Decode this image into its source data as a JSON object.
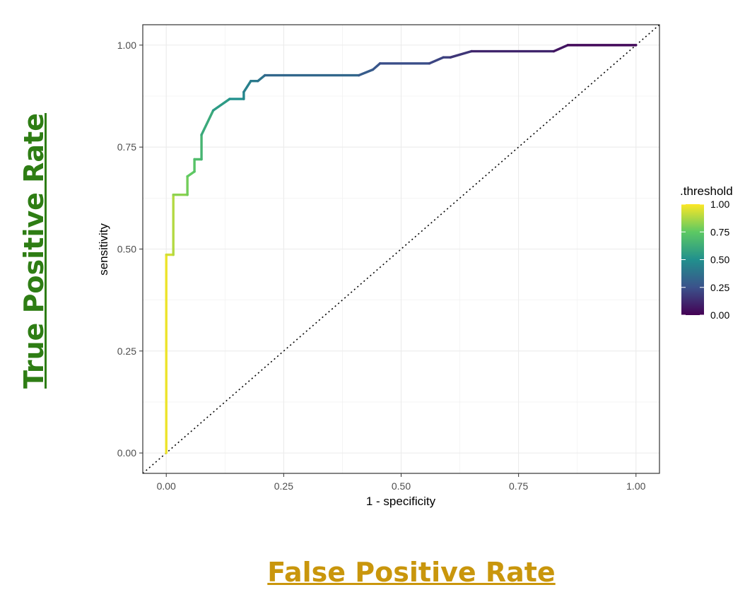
{
  "chart_data": {
    "type": "line",
    "xlabel": "1 - specificity",
    "ylabel": "sensitivity",
    "xlim": [
      -0.05,
      1.05
    ],
    "ylim": [
      -0.05,
      1.05
    ],
    "x_ticks": [
      "0.00",
      "0.25",
      "0.50",
      "0.75",
      "1.00"
    ],
    "y_ticks": [
      "0.00",
      "0.25",
      "0.50",
      "0.75",
      "1.00"
    ],
    "grid": true,
    "reference_line": {
      "style": "dotted",
      "from": [
        0,
        0
      ],
      "to": [
        1,
        1
      ]
    },
    "legend": {
      "title": ".threshold",
      "placement": "right",
      "colormap": "viridis",
      "range": [
        0,
        1
      ],
      "ticks": [
        "1.00",
        "0.75",
        "0.50",
        "0.25",
        "0.00"
      ]
    },
    "series": [
      {
        "points": [
          [
            0.0,
            0.0,
            1.0
          ],
          [
            0.0,
            0.486,
            0.95
          ],
          [
            0.015,
            0.486,
            0.92
          ],
          [
            0.015,
            0.633,
            0.85
          ],
          [
            0.045,
            0.633,
            0.8
          ],
          [
            0.045,
            0.678,
            0.77
          ],
          [
            0.06,
            0.69,
            0.74
          ],
          [
            0.06,
            0.72,
            0.71
          ],
          [
            0.075,
            0.72,
            0.68
          ],
          [
            0.075,
            0.78,
            0.64
          ],
          [
            0.1,
            0.84,
            0.58
          ],
          [
            0.135,
            0.868,
            0.52
          ],
          [
            0.165,
            0.868,
            0.48
          ],
          [
            0.165,
            0.885,
            0.45
          ],
          [
            0.18,
            0.912,
            0.42
          ],
          [
            0.195,
            0.912,
            0.4
          ],
          [
            0.21,
            0.926,
            0.37
          ],
          [
            0.41,
            0.926,
            0.3
          ],
          [
            0.44,
            0.94,
            0.28
          ],
          [
            0.455,
            0.955,
            0.26
          ],
          [
            0.56,
            0.955,
            0.22
          ],
          [
            0.59,
            0.97,
            0.2
          ],
          [
            0.605,
            0.97,
            0.18
          ],
          [
            0.65,
            0.985,
            0.14
          ],
          [
            0.825,
            0.985,
            0.08
          ],
          [
            0.855,
            1.0,
            0.05
          ],
          [
            1.0,
            1.0,
            0.0
          ]
        ]
      }
    ]
  },
  "annotations": {
    "y_title": "True Positive Rate",
    "x_title": "False Positive Rate",
    "y_title_color": "#2e7d14",
    "x_title_color": "#c9960c"
  }
}
